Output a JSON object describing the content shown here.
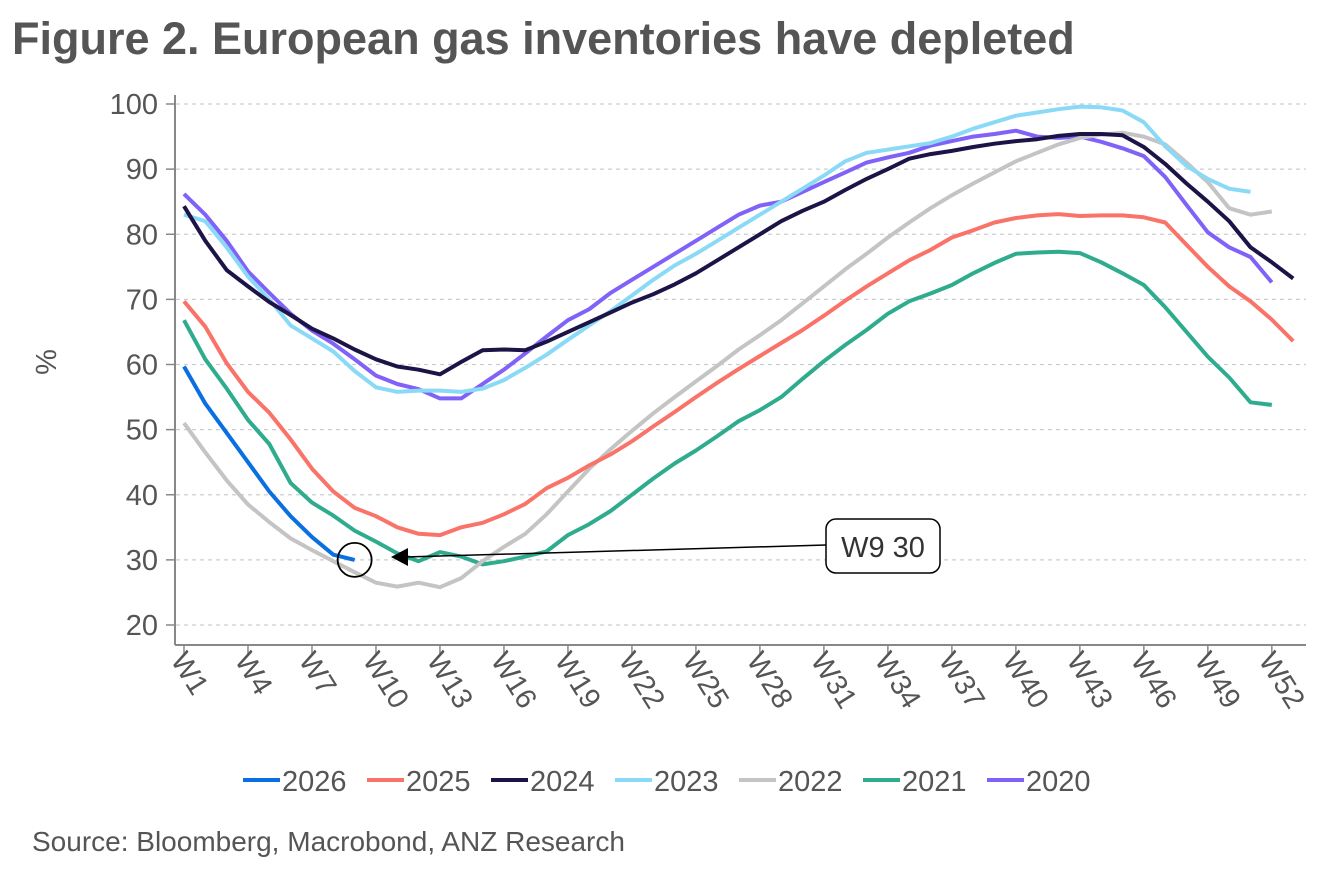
{
  "chart_data": {
    "type": "line",
    "title": "Figure 2.  European gas inventories have depleted",
    "ylabel": "%",
    "xlabel": "",
    "ylim": [
      20,
      100
    ],
    "yticks": [
      20,
      30,
      40,
      50,
      60,
      70,
      80,
      90,
      100
    ],
    "grid": true,
    "x_tick_labels": [
      "W1",
      "W4",
      "W7",
      "W10",
      "W13",
      "W16",
      "W19",
      "W22",
      "W25",
      "W28",
      "W31",
      "W34",
      "W37",
      "W40",
      "W43",
      "W46",
      "W49",
      "W52"
    ],
    "x_tick_weeks": [
      1,
      4,
      7,
      10,
      13,
      16,
      19,
      22,
      25,
      28,
      31,
      34,
      37,
      40,
      43,
      46,
      49,
      52
    ],
    "legend_position": "bottom",
    "annotation": {
      "label": "W9 30",
      "week": 9,
      "value": 30
    },
    "source": "Source: Bloomberg, Macrobond, ANZ Research",
    "series": [
      {
        "name": "2026",
        "color": "#0a6fe0",
        "values": [
          59.7,
          54,
          49.5,
          45,
          40.5,
          36.7,
          33.5,
          30.8,
          30
        ]
      },
      {
        "name": "2025",
        "color": "#fa7369",
        "values": [
          69.7,
          65.8,
          60.2,
          55.8,
          52.6,
          48.5,
          44,
          40.5,
          38,
          36.7,
          35,
          34,
          33.8,
          35,
          35.7,
          37,
          38.6,
          41,
          42.6,
          44.5,
          46.2,
          48.2,
          50.5,
          52.7,
          55,
          57.2,
          59.3,
          61.3,
          63.3,
          65.3,
          67.5,
          69.8,
          72,
          74,
          76,
          77.6,
          79.5,
          80.6,
          81.8,
          82.5,
          82.9,
          83.1,
          82.8,
          82.9,
          82.9,
          82.6,
          81.8,
          78.4,
          75,
          72,
          69.7,
          66.9,
          63.6
        ]
      },
      {
        "name": "2024",
        "color": "#1c1446",
        "values": [
          84.3,
          79,
          74.5,
          72,
          69.6,
          67.6,
          65.5,
          64,
          62.3,
          60.8,
          59.7,
          59.2,
          58.5,
          60.4,
          62.2,
          62.3,
          62.2,
          63.5,
          65,
          66.5,
          68,
          69.5,
          70.8,
          72.3,
          74,
          76,
          78,
          80,
          82,
          83.6,
          85,
          86.8,
          88.5,
          90,
          91.6,
          92.3,
          92.8,
          93.4,
          93.9,
          94.3,
          94.6,
          95.1,
          95.4,
          95.4,
          95.2,
          93.4,
          90.8,
          87.8,
          85,
          82,
          78,
          75.7,
          73.2
        ]
      },
      {
        "name": "2023",
        "color": "#8adaf7",
        "values": [
          83,
          82,
          78,
          73.5,
          70,
          66,
          64,
          62,
          59,
          56.5,
          55.8,
          56,
          56,
          55.8,
          56.3,
          57.6,
          59.5,
          61.5,
          63.8,
          66,
          68.2,
          70.6,
          73,
          75.2,
          77,
          79,
          81,
          83,
          85,
          87,
          89,
          91.2,
          92.5,
          93,
          93.5,
          94,
          95,
          96.2,
          97.2,
          98.2,
          98.7,
          99.2,
          99.6,
          99.5,
          99,
          97.2,
          93.5,
          90.5,
          88.5,
          87,
          86.5
        ]
      },
      {
        "name": "2022",
        "color": "#c4c4c4",
        "values": [
          51,
          46.5,
          42.2,
          38.5,
          35.8,
          33.3,
          31.5,
          29.8,
          28.1,
          26.5,
          25.9,
          26.5,
          25.8,
          27.2,
          29.8,
          32,
          34,
          37,
          40.5,
          44,
          47,
          49.8,
          52.5,
          55,
          57.4,
          59.8,
          62.3,
          64.5,
          66.8,
          69.4,
          72,
          74.6,
          77,
          79.5,
          81.8,
          84,
          86,
          87.8,
          89.5,
          91.2,
          92.5,
          93.8,
          94.8,
          95.3,
          95.6,
          95,
          93.8,
          91,
          88,
          84,
          83,
          83.5
        ]
      },
      {
        "name": "2021",
        "color": "#2fab8e",
        "values": [
          66.8,
          60.8,
          56.3,
          51.5,
          47.8,
          41.8,
          38.8,
          36.8,
          34.5,
          32.8,
          31,
          29.8,
          31.2,
          30.5,
          29.3,
          29.8,
          30.5,
          31.3,
          33.8,
          35.5,
          37.5,
          40,
          42.5,
          44.8,
          46.8,
          49,
          51.3,
          53,
          55,
          57.8,
          60.5,
          63,
          65.3,
          67.8,
          69.7,
          70.9,
          72.2,
          74,
          75.6,
          77,
          77.2,
          77.3,
          77.1,
          75.7,
          74,
          72.2,
          68.8,
          65,
          61.2,
          58,
          54.2,
          53.8
        ]
      },
      {
        "name": "2020",
        "color": "#8062f8",
        "values": [
          86.2,
          83,
          79,
          74.3,
          71,
          67.8,
          65.2,
          63.2,
          60.8,
          58.3,
          57,
          56.2,
          54.8,
          54.8,
          57,
          59.2,
          61.7,
          64.3,
          66.8,
          68.5,
          71,
          73,
          75,
          77,
          79,
          81,
          83,
          84.4,
          85,
          86.5,
          88,
          89.5,
          91,
          91.8,
          92.5,
          93.6,
          94.3,
          95,
          95.4,
          95.9,
          95,
          94.8,
          95,
          94.2,
          93.2,
          92,
          88.8,
          84.5,
          80.3,
          78,
          76.5,
          72.6
        ]
      }
    ]
  }
}
